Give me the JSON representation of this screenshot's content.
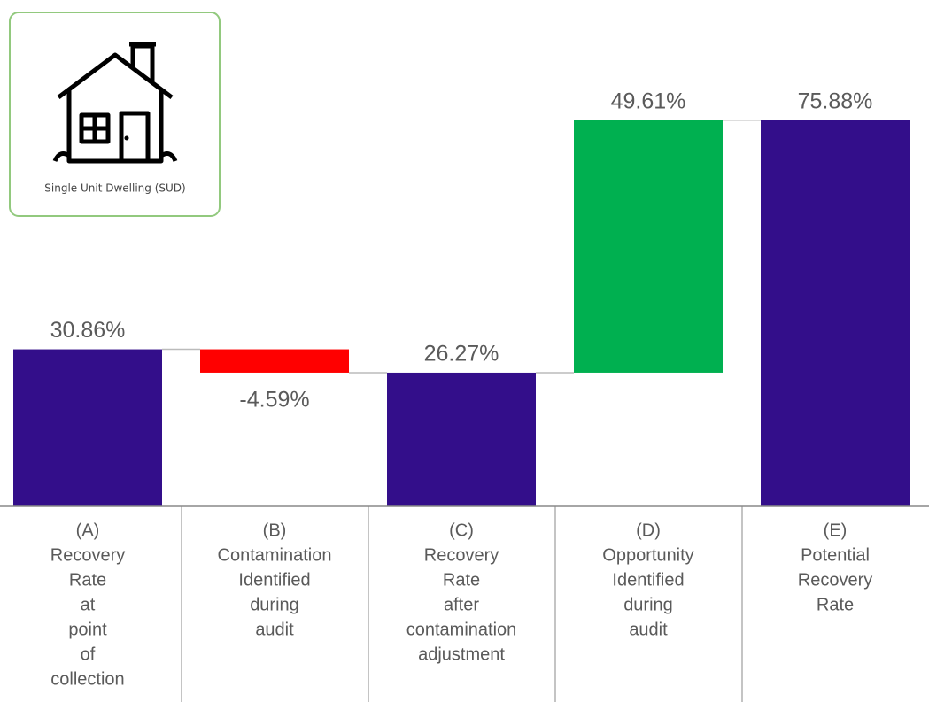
{
  "card": {
    "label": "Single Unit Dwelling (SUD)"
  },
  "chart_data": {
    "type": "waterfall",
    "categories": [
      [
        "(A)",
        "Recovery",
        "Rate",
        "at",
        "point",
        "of",
        "collection"
      ],
      [
        "(B)",
        "Contamination",
        "Identified",
        "during",
        "audit"
      ],
      [
        "(C)",
        "Recovery",
        "Rate",
        "after",
        "contamination",
        "adjustment"
      ],
      [
        "(D)",
        "Opportunity",
        "Identified",
        "during",
        "audit"
      ],
      [
        "(E)",
        "Potential",
        "Recovery",
        "Rate"
      ]
    ],
    "values": [
      30.86,
      -4.59,
      26.27,
      49.61,
      75.88
    ],
    "value_labels": [
      "30.86%",
      "-4.59%",
      "26.27%",
      "49.61%",
      "75.88%"
    ],
    "measure": [
      "total",
      "relative",
      "total",
      "relative",
      "total"
    ],
    "colors": {
      "total": "#330e8a",
      "increase": "#00b050",
      "decrease": "#ff0000"
    },
    "ylim": [
      0,
      80
    ]
  }
}
